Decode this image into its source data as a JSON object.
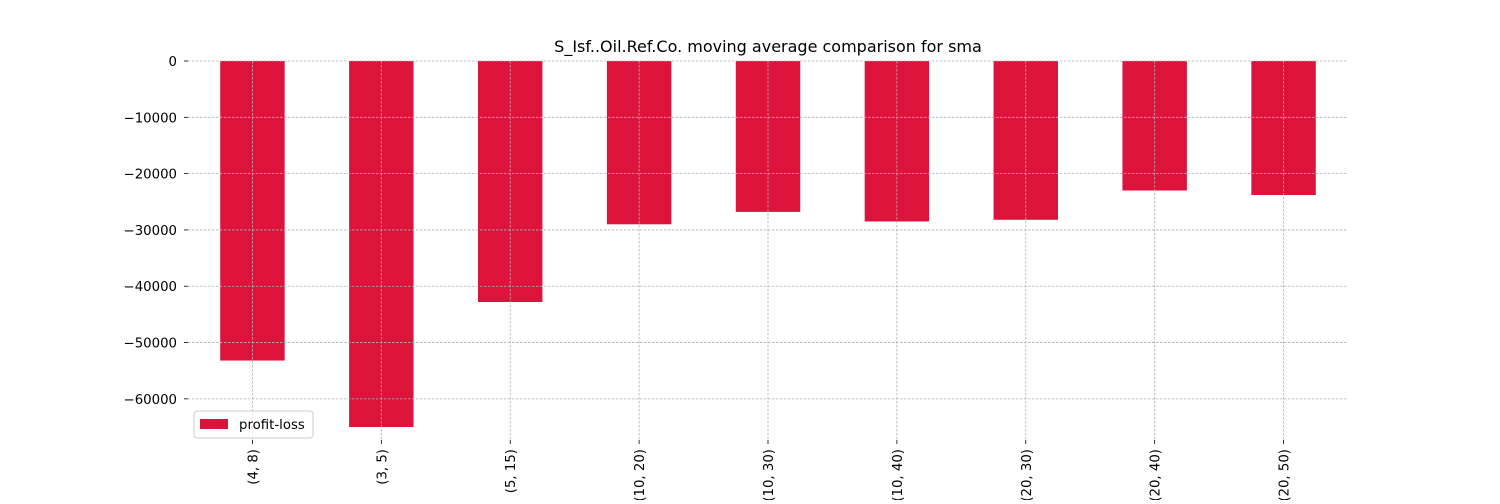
{
  "chart_data": {
    "type": "bar",
    "title": "S_Isf..Oil.Ref.Co. moving average comparison for sma",
    "xlabel": "",
    "ylabel": "",
    "categories": [
      "(4, 8)",
      "(3, 5)",
      "(5, 15)",
      "(10, 20)",
      "(10, 30)",
      "(10, 40)",
      "(20, 30)",
      "(20, 40)",
      "(20, 50)"
    ],
    "series": [
      {
        "name": "profit-loss",
        "values": [
          -53200,
          -65000,
          -42800,
          -29000,
          -26800,
          -28500,
          -28200,
          -23000,
          -23800
        ]
      }
    ],
    "ylim": [
      -65000,
      0
    ],
    "yticks": [
      0,
      -10000,
      -20000,
      -30000,
      -40000,
      -50000,
      -60000
    ],
    "ytick_labels": [
      "0",
      "−10000",
      "−20000",
      "−30000",
      "−40000",
      "−50000",
      "−60000"
    ],
    "grid": true,
    "legend": "bottom-left",
    "colors": {
      "bar": "#dc143c",
      "grid": "#b0b0b0"
    }
  }
}
